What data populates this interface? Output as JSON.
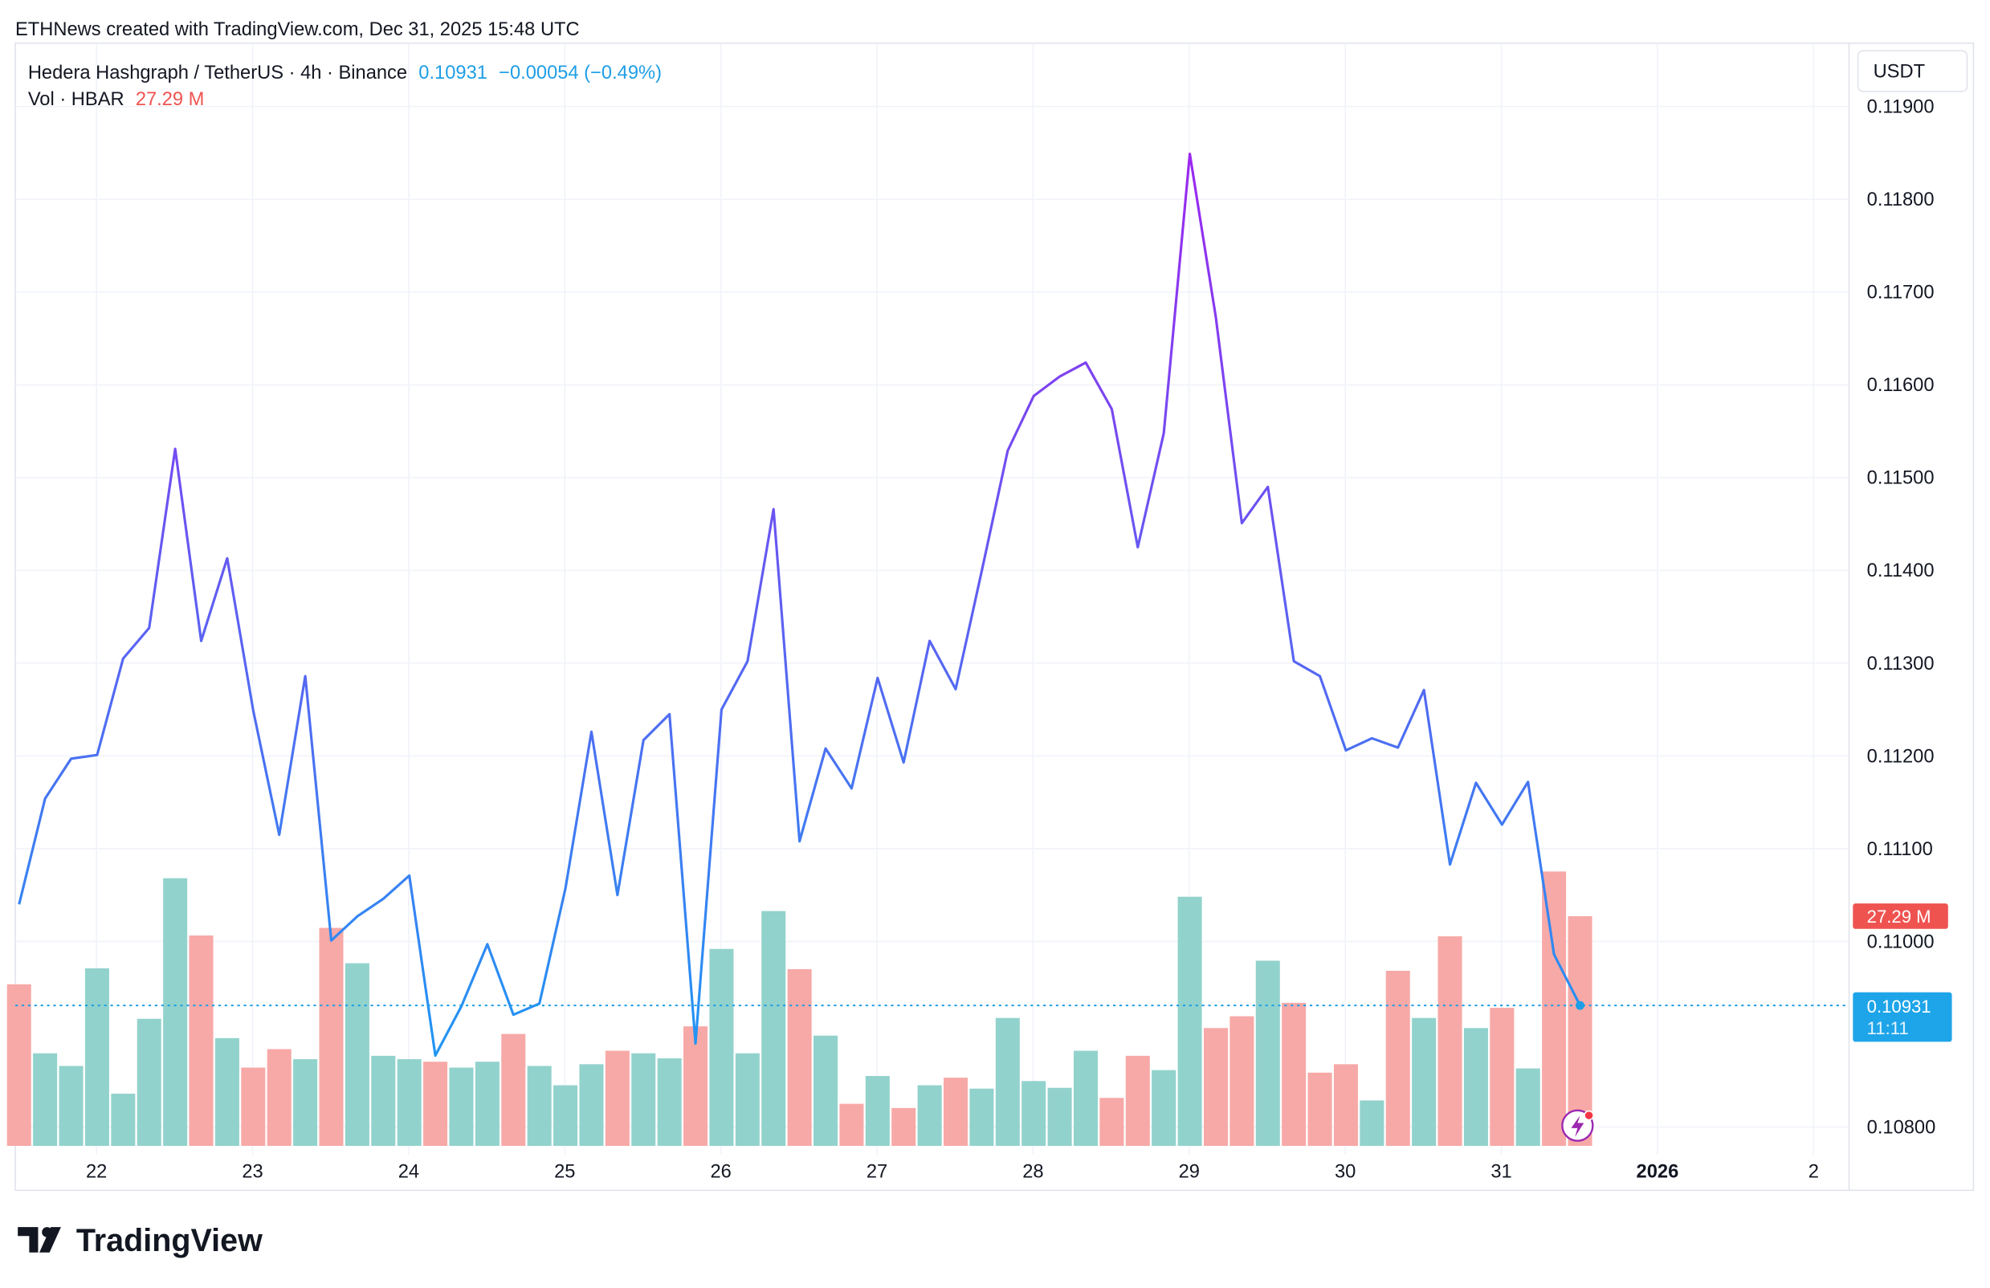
{
  "watermark": "ETHNews created with TradingView.com, Dec 31, 2025 15:48 UTC",
  "legend": {
    "symbol": "Hedera Hashgraph / TetherUS · 4h · Binance",
    "last": "0.10931",
    "change": "−0.00054 (−0.49%)",
    "vol_label": "Vol · HBAR",
    "vol_value": "27.29 M"
  },
  "currency_button": "USDT",
  "price_label": {
    "price": "0.10931",
    "countdown": "11:11"
  },
  "volume_label": "27.29 M",
  "logo_text": "TradingView",
  "colors": {
    "up": "#92d2cc",
    "down": "#f7a9a7",
    "line_low": "#2196f3",
    "line_high": "#9c27f0",
    "last_price": "#1e9ee6",
    "vol_badge": "#ef5350"
  },
  "chart_data": {
    "type": "line",
    "title": "Hedera Hashgraph / TetherUS · 4h · Binance",
    "ylabel": "USDT",
    "ylim": [
      0.1078,
      0.1193
    ],
    "y_ticks": [
      "0.11900",
      "0.11800",
      "0.11700",
      "0.11600",
      "0.11500",
      "0.11400",
      "0.11300",
      "0.11200",
      "0.11100",
      "0.11000",
      "0.10800"
    ],
    "y_tick_values": [
      0.119,
      0.118,
      0.117,
      0.116,
      0.115,
      0.114,
      0.113,
      0.112,
      0.111,
      0.11,
      0.108
    ],
    "x_ticks": [
      {
        "label": "22",
        "bar": 3
      },
      {
        "label": "23",
        "bar": 9
      },
      {
        "label": "24",
        "bar": 15
      },
      {
        "label": "25",
        "bar": 21
      },
      {
        "label": "26",
        "bar": 27
      },
      {
        "label": "27",
        "bar": 33
      },
      {
        "label": "28",
        "bar": 39
      },
      {
        "label": "29",
        "bar": 45
      },
      {
        "label": "30",
        "bar": 51
      },
      {
        "label": "31",
        "bar": 57
      },
      {
        "label": "2026",
        "bar": 63,
        "bold": true
      },
      {
        "label": "2",
        "bar": 69
      }
    ],
    "grid": true,
    "series": [
      {
        "name": "HBARUSDT close",
        "values": [
          0.1104,
          0.11154,
          0.11197,
          0.11201,
          0.11305,
          0.11338,
          0.11531,
          0.11324,
          0.11413,
          0.11249,
          0.11115,
          0.11286,
          0.11001,
          0.11027,
          0.11046,
          0.11071,
          0.10877,
          0.1093,
          0.10997,
          0.10921,
          0.10933,
          0.11057,
          0.11226,
          0.1105,
          0.11217,
          0.11245,
          0.1089,
          0.1125,
          0.11302,
          0.11466,
          0.11108,
          0.11208,
          0.11165,
          0.11284,
          0.11193,
          0.11324,
          0.11272,
          0.11399,
          0.11529,
          0.11588,
          0.11609,
          0.11624,
          0.11574,
          0.11425,
          0.11548,
          0.11849,
          0.11673,
          0.11451,
          0.1149,
          0.11302,
          0.11286,
          0.11206,
          0.11219,
          0.11209,
          0.11271,
          0.11083,
          0.11171,
          0.11126,
          0.11172,
          0.10986,
          0.10931
        ]
      },
      {
        "name": "Vol · HBAR (M)",
        "values": [
          19.2,
          11.0,
          9.5,
          21.1,
          6.2,
          15.1,
          31.8,
          25.0,
          12.8,
          9.3,
          11.5,
          10.3,
          25.9,
          21.7,
          10.7,
          10.3,
          10.0,
          9.3,
          10.0,
          13.3,
          9.5,
          7.2,
          9.7,
          11.3,
          11.0,
          10.4,
          14.2,
          23.4,
          11.0,
          27.9,
          21.0,
          13.1,
          5.0,
          8.3,
          4.5,
          7.2,
          8.1,
          6.8,
          15.2,
          7.7,
          6.9,
          11.3,
          5.7,
          10.7,
          9.0,
          29.6,
          14.0,
          15.4,
          22.0,
          17.0,
          8.7,
          9.7,
          5.4,
          20.8,
          15.2,
          24.9,
          14.0,
          16.4,
          9.2,
          32.6,
          27.29
        ],
        "direction": [
          "d",
          "u",
          "u",
          "u",
          "u",
          "u",
          "u",
          "d",
          "u",
          "d",
          "d",
          "u",
          "d",
          "u",
          "u",
          "u",
          "d",
          "u",
          "u",
          "d",
          "u",
          "u",
          "u",
          "d",
          "u",
          "u",
          "d",
          "u",
          "u",
          "u",
          "d",
          "u",
          "d",
          "u",
          "d",
          "u",
          "d",
          "u",
          "u",
          "u",
          "u",
          "u",
          "d",
          "d",
          "u",
          "u",
          "d",
          "d",
          "u",
          "d",
          "d",
          "d",
          "u",
          "d",
          "u",
          "d",
          "u",
          "d",
          "u",
          "d",
          "d"
        ]
      }
    ]
  }
}
